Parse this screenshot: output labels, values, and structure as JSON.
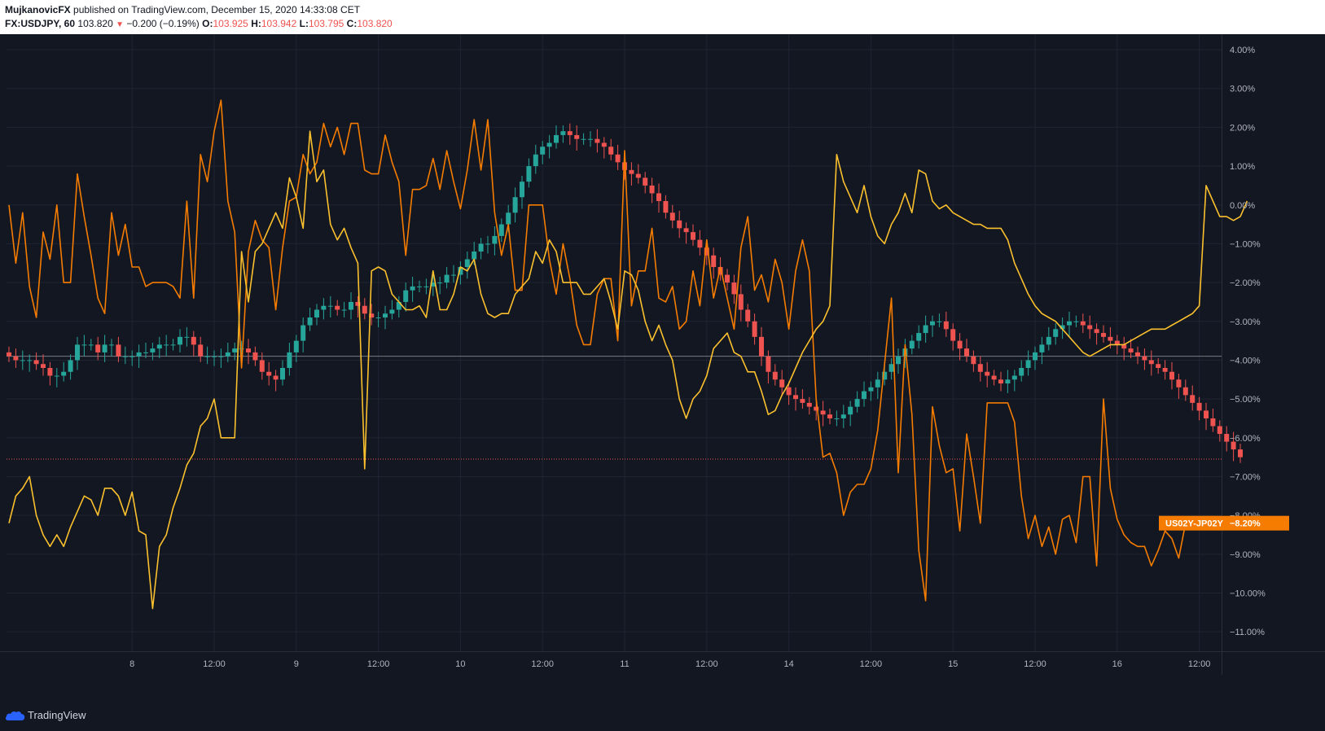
{
  "header": {
    "author": "MujkanovicFX",
    "published_text": "published on TradingView.com, December 15, 2020 14:33:08 CET",
    "symbol": "FX:USDJPY, 60",
    "last": "103.820",
    "change": "−0.200 (−0.19%)",
    "open_label": "O:",
    "open": "103.925",
    "high_label": "H:",
    "high": "103.942",
    "low_label": "L:",
    "low": "103.795",
    "close_label": "C:",
    "close": "103.820"
  },
  "footer": {
    "brand": "TradingView"
  },
  "colors": {
    "background": "#131722",
    "grid": "#1f2433",
    "up": "#26a69a",
    "down": "#ef5350",
    "spread_line": "#f57c00",
    "yellow_line": "#fbc02d"
  },
  "chart_data": {
    "type": "line",
    "y_axis": {
      "min": -11.5,
      "max": 4.4,
      "unit": "%",
      "ticks": [
        4,
        3,
        2,
        1,
        0,
        -1,
        -2,
        -3,
        -4,
        -5,
        -6,
        -7,
        -8,
        -9,
        -10,
        -11
      ],
      "tick_labels": [
        "4.00%",
        "3.00%",
        "2.00%",
        "1.00%",
        "0.00%",
        "−1.00%",
        "−2.00%",
        "−3.00%",
        "−4.00%",
        "−5.00%",
        "−6.00%",
        "−7.00%",
        "−8.00%",
        "−9.00%",
        "−10.00%",
        "−11.00%"
      ]
    },
    "x_axis": {
      "tick_labels": [
        "8",
        "12:00",
        "9",
        "12:00",
        "10",
        "12:00",
        "11",
        "12:00",
        "14",
        "12:00",
        "15",
        "12:00",
        "16",
        "12:00"
      ],
      "ticks_bar": [
        18,
        30,
        42,
        54,
        66,
        78,
        90,
        102,
        114,
        126,
        138,
        150,
        162,
        174
      ]
    },
    "reference_line": -3.9,
    "last_price_line": -6.55,
    "last_value_badge": {
      "label": "US02Y-JP02Y",
      "value": "−8.20%",
      "y": -8.2
    },
    "series": [
      {
        "name": "US02Y-JP02Y",
        "style": "line",
        "color": "#f57c00",
        "y": [
          0.0,
          -1.5,
          -0.2,
          -2.1,
          -2.9,
          -0.7,
          -1.4,
          0.0,
          -2.0,
          -2.0,
          0.8,
          -0.3,
          -1.3,
          -2.4,
          -2.8,
          -0.2,
          -1.3,
          -0.5,
          -1.6,
          -1.6,
          -2.1,
          -2.0,
          -2.0,
          -2.0,
          -2.1,
          -2.4,
          0.1,
          -2.4,
          1.3,
          0.6,
          1.9,
          2.7,
          0.1,
          -0.7,
          -4.2,
          -1.2,
          -0.4,
          -0.9,
          -1.1,
          -2.7,
          -1.1,
          0.1,
          0.2,
          1.3,
          0.8,
          1.1,
          2.1,
          1.5,
          2.0,
          1.3,
          2.1,
          2.1,
          0.9,
          0.8,
          0.8,
          1.8,
          1.1,
          0.6,
          -1.3,
          0.4,
          0.4,
          0.5,
          1.2,
          0.4,
          1.4,
          0.6,
          -0.1,
          0.9,
          2.2,
          0.9,
          2.2,
          -0.2,
          -1.3,
          -0.5,
          -2.2,
          -2.2,
          0.0,
          0.0,
          0.0,
          -1.4,
          -2.3,
          -1.0,
          -1.9,
          -3.1,
          -3.6,
          -3.6,
          -2.3,
          -1.9,
          -1.9,
          -3.5,
          1.4,
          -2.6,
          -1.7,
          -1.7,
          -0.6,
          -2.4,
          -2.5,
          -2.1,
          -3.2,
          -3.0,
          -1.7,
          -2.6,
          -0.9,
          -2.4,
          -1.6,
          -2.4,
          -3.2,
          -1.1,
          -0.3,
          -2.2,
          -1.8,
          -2.5,
          -1.4,
          -2.0,
          -3.2,
          -1.7,
          -0.9,
          -1.7,
          -5.0,
          -6.5,
          -6.4,
          -6.9,
          -8.0,
          -7.4,
          -7.2,
          -7.2,
          -6.8,
          -5.8,
          -4.1,
          -2.4,
          -6.9,
          -3.6,
          -5.4,
          -8.9,
          -10.2,
          -5.2,
          -6.2,
          -6.9,
          -6.8,
          -8.4,
          -5.9,
          -7.0,
          -8.2,
          -5.1,
          -5.1,
          -5.1,
          -5.1,
          -5.6,
          -7.5,
          -8.6,
          -8.0,
          -8.8,
          -8.3,
          -9.0,
          -8.1,
          -8.0,
          -8.7,
          -7.0,
          -7.0,
          -9.3,
          -5.0,
          -7.3,
          -8.1,
          -8.5,
          -8.7,
          -8.8,
          -8.8,
          -9.3,
          -8.9,
          -8.4,
          -8.6,
          -9.1,
          -8.2,
          -8.2,
          -8.2
        ]
      },
      {
        "style": "line",
        "color": "#fbc02d",
        "y": [
          -8.2,
          -7.5,
          -7.3,
          -7.0,
          -8.0,
          -8.5,
          -8.8,
          -8.5,
          -8.8,
          -8.3,
          -7.9,
          -7.5,
          -7.6,
          -8.0,
          -7.3,
          -7.3,
          -7.5,
          -8.0,
          -7.4,
          -8.4,
          -8.5,
          -10.4,
          -8.8,
          -8.5,
          -7.8,
          -7.3,
          -6.7,
          -6.4,
          -5.7,
          -5.5,
          -5.0,
          -6.0,
          -6.0,
          -6.0,
          -1.2,
          -2.5,
          -1.2,
          -1.0,
          -0.6,
          -0.2,
          -0.6,
          0.7,
          0.2,
          -0.6,
          1.9,
          0.6,
          0.9,
          -0.5,
          -0.9,
          -0.6,
          -1.1,
          -1.5,
          -6.8,
          -1.7,
          -1.6,
          -1.7,
          -2.3,
          -2.5,
          -2.7,
          -2.7,
          -2.6,
          -2.9,
          -1.7,
          -2.7,
          -2.7,
          -2.3,
          -1.6,
          -1.7,
          -1.4,
          -2.3,
          -2.8,
          -2.9,
          -2.8,
          -2.8,
          -2.3,
          -2.1,
          -1.9,
          -1.2,
          -1.5,
          -0.9,
          -1.2,
          -2.0,
          -2.0,
          -2.0,
          -2.3,
          -2.3,
          -2.1,
          -1.9,
          -2.5,
          -3.2,
          -1.7,
          -1.8,
          -2.2,
          -3.0,
          -3.5,
          -3.1,
          -3.6,
          -4.0,
          -5.0,
          -5.5,
          -5.0,
          -4.8,
          -4.4,
          -3.7,
          -3.5,
          -3.3,
          -3.8,
          -3.9,
          -4.3,
          -4.3,
          -4.8,
          -5.4,
          -5.3,
          -4.9,
          -4.6,
          -4.2,
          -3.8,
          -3.5,
          -3.2,
          -3.0,
          -2.6,
          1.3,
          0.6,
          0.2,
          -0.2,
          0.5,
          -0.3,
          -0.8,
          -1.0,
          -0.5,
          -0.2,
          0.3,
          -0.2,
          0.9,
          0.8,
          0.1,
          -0.1,
          0.0,
          -0.2,
          -0.3,
          -0.4,
          -0.5,
          -0.5,
          -0.6,
          -0.6,
          -0.6,
          -0.9,
          -1.5,
          -1.9,
          -2.3,
          -2.6,
          -2.8,
          -2.9,
          -3.0,
          -3.2,
          -3.4,
          -3.6,
          -3.8,
          -3.9,
          -3.8,
          -3.7,
          -3.6,
          -3.6,
          -3.6,
          -3.5,
          -3.4,
          -3.3,
          -3.2,
          -3.2,
          -3.2,
          -3.1,
          -3.0,
          -2.9,
          -2.8,
          -2.6,
          0.5,
          0.1,
          -0.3,
          -0.3,
          -0.4,
          -0.3,
          0.1
        ]
      },
      {
        "name": "FX:USDJPY, 60",
        "style": "candles",
        "up_color": "#26a69a",
        "down_color": "#ef5350",
        "close": [
          -3.9,
          -4.0,
          -4.0,
          -4.0,
          -4.1,
          -4.2,
          -4.4,
          -4.4,
          -4.3,
          -4.0,
          -3.6,
          -3.6,
          -3.6,
          -3.8,
          -3.6,
          -3.6,
          -3.9,
          -3.9,
          -3.9,
          -3.8,
          -3.8,
          -3.7,
          -3.6,
          -3.6,
          -3.6,
          -3.4,
          -3.4,
          -3.6,
          -3.9,
          -3.9,
          -3.9,
          -3.9,
          -3.8,
          -3.7,
          -3.7,
          -3.8,
          -4.0,
          -4.3,
          -4.4,
          -4.5,
          -4.2,
          -3.8,
          -3.5,
          -3.1,
          -2.9,
          -2.7,
          -2.6,
          -2.6,
          -2.7,
          -2.7,
          -2.5,
          -2.6,
          -2.8,
          -2.9,
          -2.9,
          -2.8,
          -2.7,
          -2.5,
          -2.2,
          -2.1,
          -2.1,
          -2.1,
          -2.0,
          -2.0,
          -1.8,
          -1.8,
          -1.6,
          -1.4,
          -1.2,
          -1.0,
          -1.0,
          -0.8,
          -0.5,
          -0.2,
          0.2,
          0.6,
          1.0,
          1.3,
          1.5,
          1.6,
          1.8,
          1.9,
          1.8,
          1.7,
          1.7,
          1.7,
          1.6,
          1.5,
          1.3,
          1.1,
          0.9,
          0.8,
          0.7,
          0.5,
          0.3,
          0.1,
          -0.2,
          -0.4,
          -0.6,
          -0.7,
          -0.9,
          -1.1,
          -1.3,
          -1.6,
          -1.8,
          -2.0,
          -2.3,
          -2.7,
          -3.0,
          -3.4,
          -3.9,
          -4.3,
          -4.5,
          -4.7,
          -4.9,
          -5.0,
          -5.1,
          -5.2,
          -5.3,
          -5.4,
          -5.5,
          -5.5,
          -5.4,
          -5.2,
          -5.0,
          -4.8,
          -4.7,
          -4.5,
          -4.3,
          -4.1,
          -3.9,
          -3.7,
          -3.5,
          -3.3,
          -3.1,
          -3.0,
          -3.0,
          -3.2,
          -3.5,
          -3.7,
          -3.9,
          -4.1,
          -4.3,
          -4.4,
          -4.5,
          -4.6,
          -4.5,
          -4.4,
          -4.2,
          -4.0,
          -3.8,
          -3.6,
          -3.4,
          -3.2,
          -3.1,
          -3.0,
          -3.0,
          -3.1,
          -3.2,
          -3.3,
          -3.4,
          -3.5,
          -3.6,
          -3.7,
          -3.8,
          -3.9,
          -4.0,
          -4.1,
          -4.2,
          -4.3,
          -4.5,
          -4.7,
          -4.9,
          -5.1,
          -5.3,
          -5.5,
          -5.7,
          -5.9,
          -6.1,
          -6.3,
          -6.5
        ]
      }
    ]
  }
}
